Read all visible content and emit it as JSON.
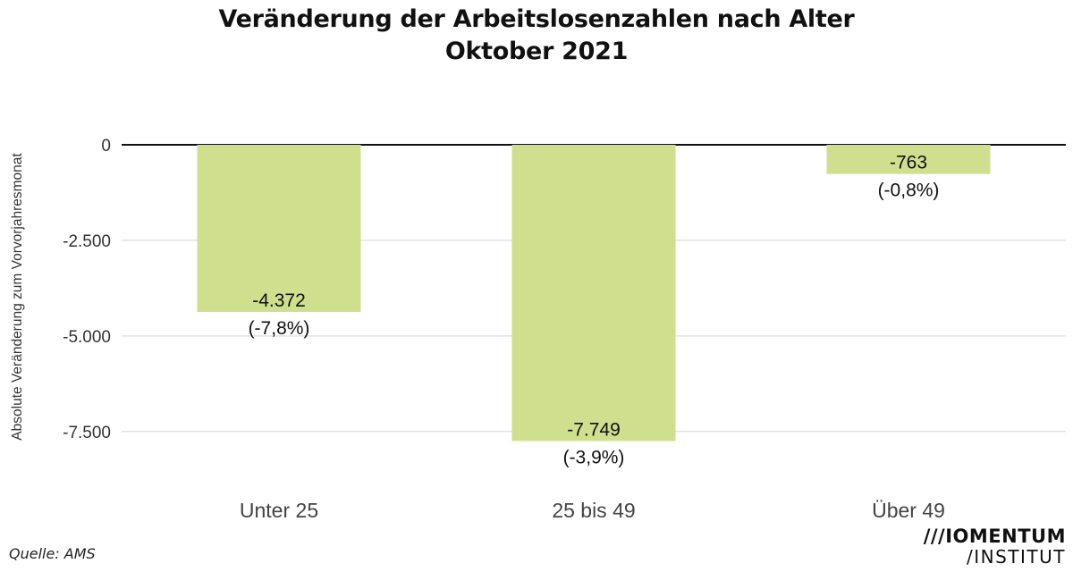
{
  "chart_data": {
    "type": "bar",
    "title": "Veränderung der Arbeitslosenzahlen nach Alter",
    "subtitle": "Oktober 2021",
    "xlabel": "",
    "ylabel": "Absolute Veränderung zum Vorvorjahresmonat",
    "categories": [
      "Unter 25",
      "25 bis 49",
      "Über 49"
    ],
    "values": [
      -4372,
      -7749,
      -763
    ],
    "value_labels": [
      "-4.372",
      "-7.749",
      "-763"
    ],
    "pct_labels": [
      "(-7,8%)",
      "(-3,9%)",
      "(-0,8%)"
    ],
    "yticks": [
      0,
      -2500,
      -5000,
      -7500
    ],
    "ytick_labels": [
      "0",
      "-2.500",
      "-5.000",
      "-7.500"
    ],
    "ylim": [
      -8300,
      0
    ],
    "grid": true,
    "legend": "none",
    "colors": {
      "bar": "#d0df8e",
      "zero_line": "#111111",
      "grid": "#e3e3e3"
    }
  },
  "source": "Quelle: AMS",
  "logo": {
    "line1": "///IOMENTUM",
    "line2": "/INSTITUT"
  }
}
